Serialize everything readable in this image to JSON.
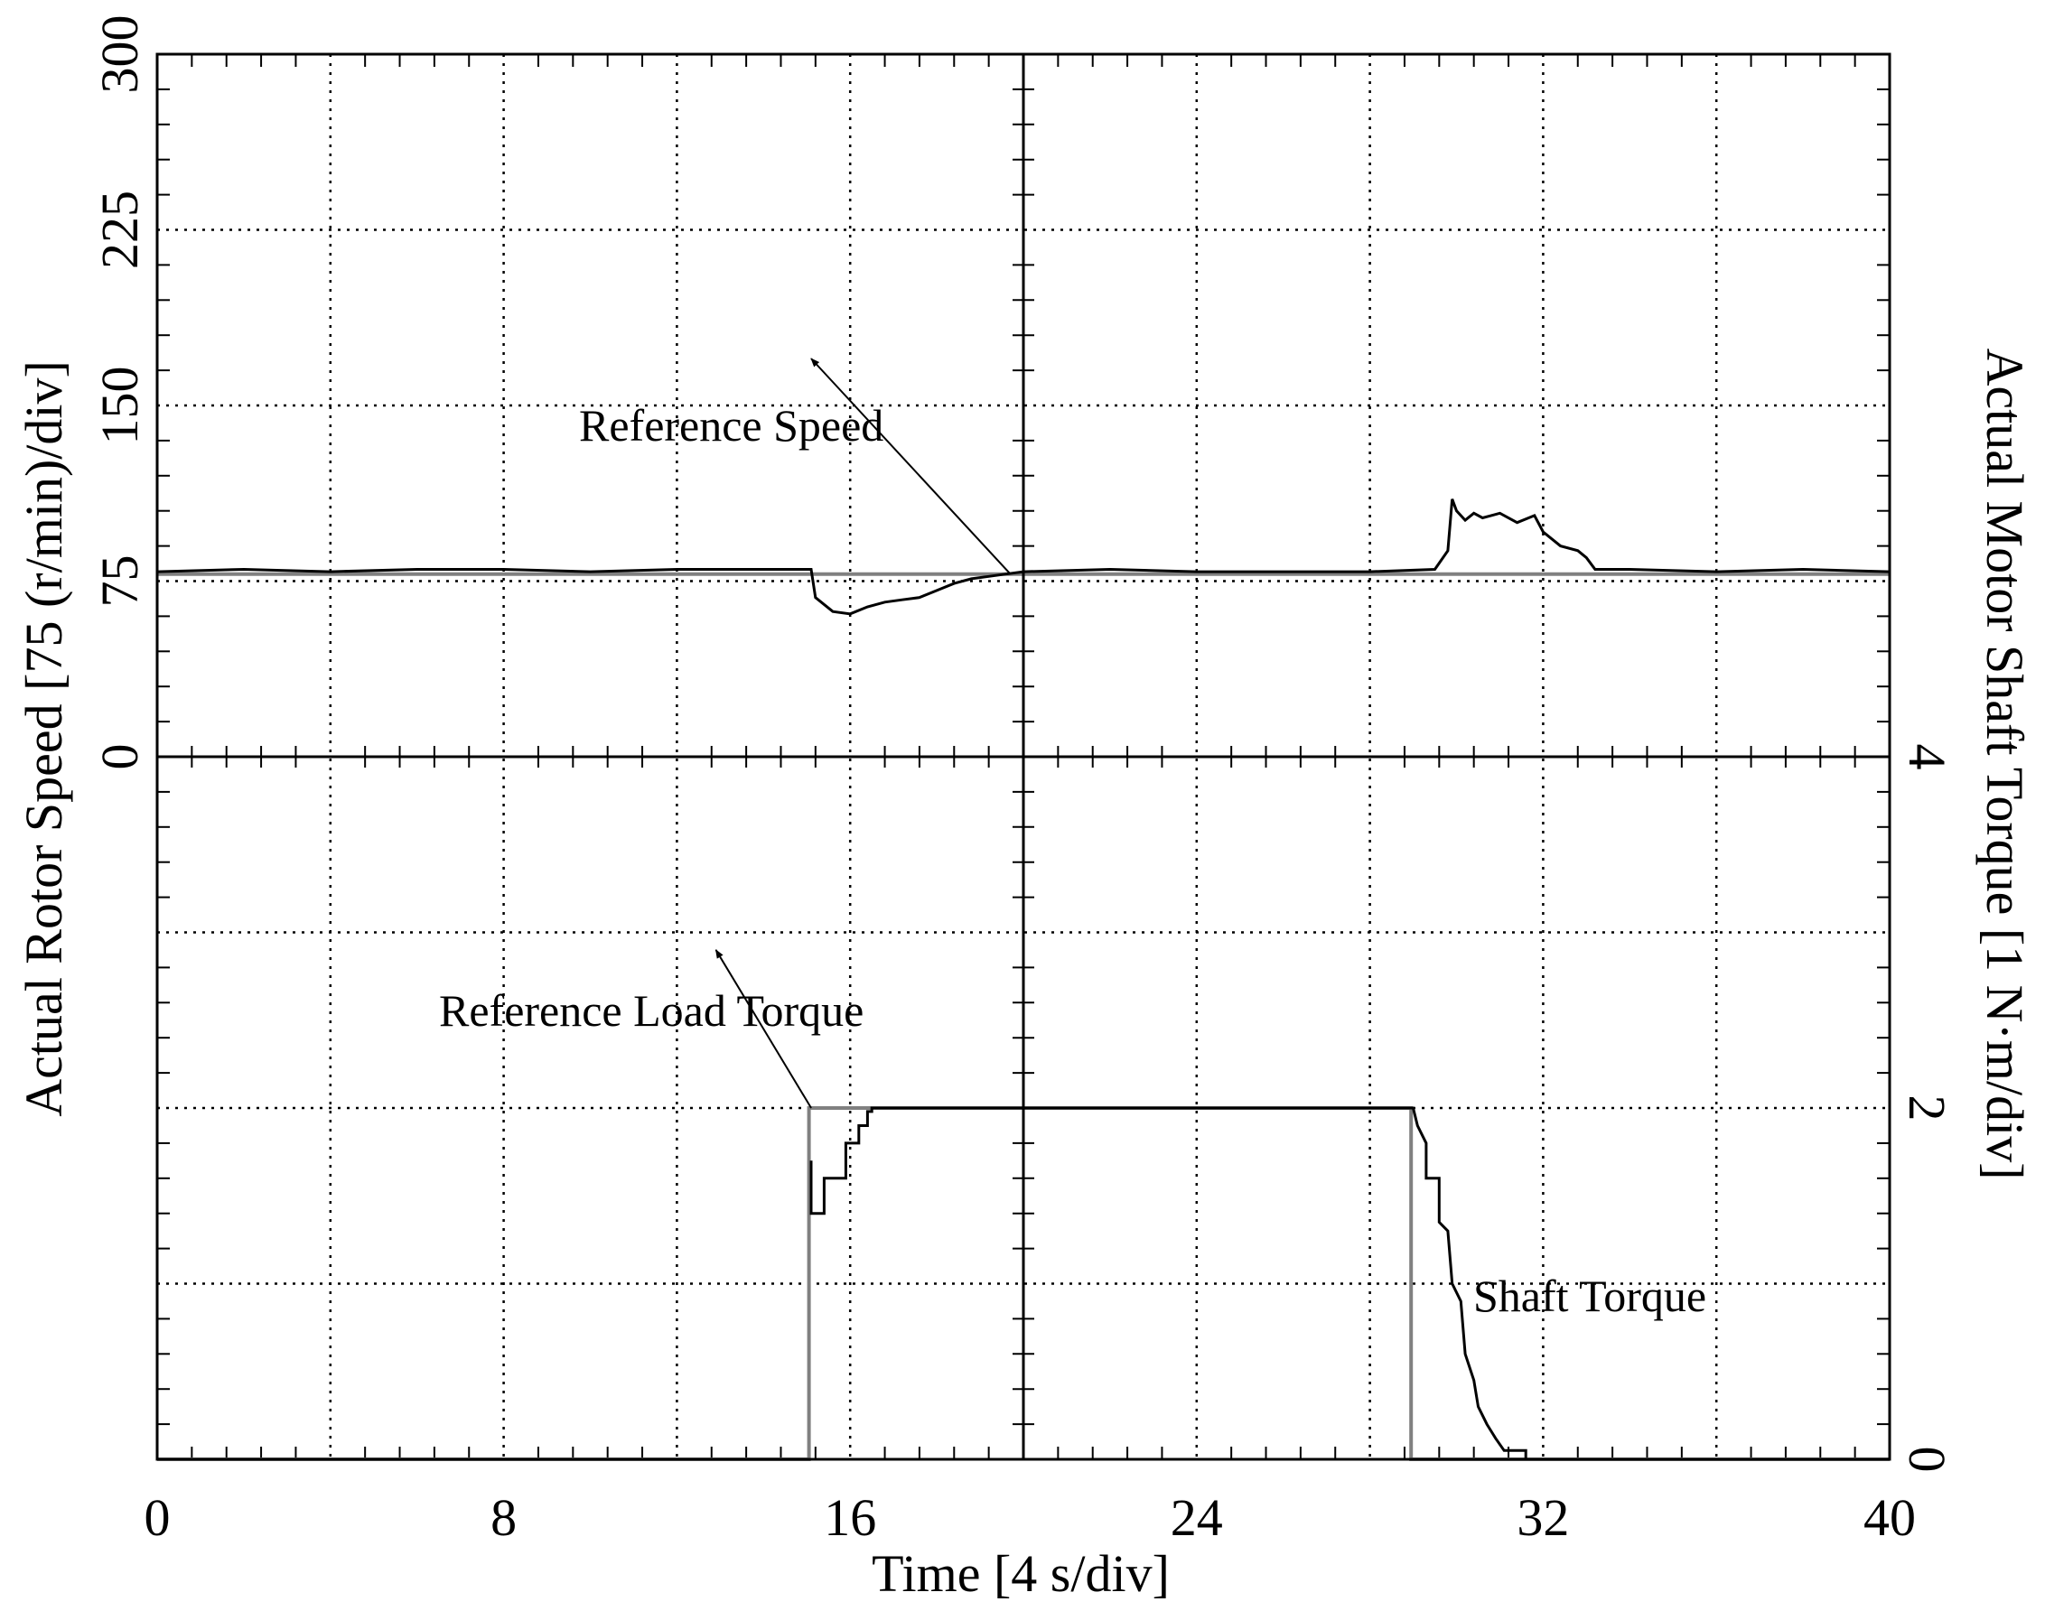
{
  "chart_data": {
    "type": "line",
    "xlabel": "Time [4 s/div]",
    "ylabel_left": "Actual Rotor Speed [75 (r/min)/div]",
    "ylabel_right": "Actual Motor Shaft Torque [1 N·m/div]",
    "xlim": [
      0,
      40
    ],
    "x_ticks": [
      0,
      8,
      16,
      24,
      32,
      40
    ],
    "x_tick_labels": [
      "0",
      "8",
      "16",
      "24",
      "32",
      "40"
    ],
    "grid": true,
    "colors": {
      "measured": "#000000",
      "reference": "#808080",
      "grid": "#000000"
    },
    "panels": [
      {
        "name": "speed",
        "position": "top",
        "ylim": [
          0,
          300
        ],
        "y_ticks": [
          0,
          75,
          150,
          225,
          300
        ],
        "y_tick_labels": [
          "0",
          "75",
          "150",
          "225",
          "300"
        ],
        "tick_side": "left",
        "series": [
          {
            "role": "reference",
            "x": [
              0,
              40
            ],
            "y": [
              78,
              78
            ]
          },
          {
            "role": "measured",
            "x": [
              0,
              2,
              4,
              6,
              8,
              10,
              12,
              14,
              15.1,
              15.2,
              15.6,
              16.0,
              16.4,
              16.8,
              17.2,
              17.6,
              18.0,
              18.4,
              18.8,
              19.2,
              19.6,
              20,
              22,
              24,
              26,
              28,
              29.5,
              29.8,
              29.9,
              30.0,
              30.2,
              30.4,
              30.6,
              30.8,
              31.0,
              31.4,
              31.8,
              32.0,
              32.4,
              32.8,
              33.0,
              33.2,
              34,
              36,
              38,
              40
            ],
            "y": [
              79,
              80,
              79,
              80,
              80,
              79,
              80,
              80,
              80,
              68,
              62,
              61,
              64,
              66,
              67,
              68,
              71,
              74,
              76,
              77,
              78,
              79,
              80,
              79,
              79,
              79,
              80,
              88,
              110,
              105,
              101,
              104,
              102,
              103,
              104,
              100,
              103,
              96,
              90,
              88,
              85,
              80,
              80,
              79,
              80,
              79
            ]
          }
        ]
      },
      {
        "name": "torque",
        "position": "bottom",
        "ylim": [
          0,
          4
        ],
        "y_ticks": [
          0,
          2,
          4
        ],
        "y_tick_labels": [
          "0",
          "2",
          "4"
        ],
        "tick_side": "right",
        "series": [
          {
            "role": "reference",
            "x": [
              0,
              15.05,
              15.05,
              28.95,
              28.95,
              40
            ],
            "y": [
              0,
              0,
              2,
              2,
              0,
              0
            ]
          },
          {
            "role": "measured",
            "x": [
              15.1,
              15.1,
              15.4,
              15.4,
              15.9,
              15.9,
              16.2,
              16.2,
              16.4,
              16.4,
              16.5,
              16.5,
              29.0,
              29.1,
              29.3,
              29.3,
              29.6,
              29.6,
              29.8,
              29.9,
              30.1,
              30.2,
              30.4,
              30.5,
              30.7,
              30.9,
              31.1,
              31.6,
              31.6
            ],
            "y": [
              1.7,
              1.4,
              1.4,
              1.6,
              1.6,
              1.8,
              1.8,
              1.9,
              1.9,
              1.98,
              1.98,
              2.0,
              2.0,
              1.9,
              1.8,
              1.6,
              1.6,
              1.35,
              1.3,
              1.0,
              0.9,
              0.6,
              0.45,
              0.3,
              0.2,
              0.12,
              0.05,
              0.05,
              0.0
            ]
          }
        ]
      }
    ],
    "annotations": [
      {
        "text": "Reference Speed",
        "panel": "speed",
        "arrow_from": [
          19.7,
          78
        ],
        "arrow_to": [
          15.1,
          170
        ]
      },
      {
        "text": "Reference Load Torque",
        "panel": "torque",
        "arrow_from": [
          15.1,
          2.0
        ],
        "arrow_to": [
          12.9,
          2.9
        ]
      },
      {
        "text": "Shaft Torque",
        "panel": "torque"
      }
    ]
  }
}
